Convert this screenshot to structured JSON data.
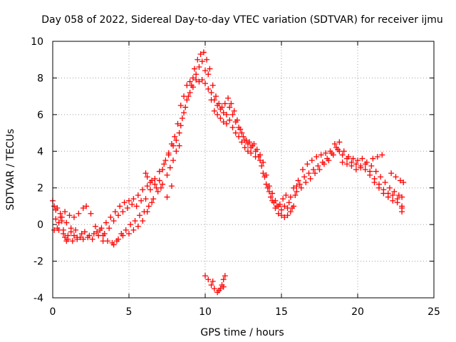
{
  "chart_data": {
    "type": "scatter",
    "title": "Day 058 of 2022, Sidereal Day-to-day VTEC variation (SDTVAR) for receiver ijmu",
    "xlabel": "GPS time / hours",
    "ylabel": "SDTVAR / TECUs",
    "xlim": [
      0,
      25
    ],
    "ylim": [
      -4,
      10
    ],
    "xticks": [
      0,
      5,
      10,
      15,
      20,
      25
    ],
    "yticks": [
      -4,
      -2,
      0,
      2,
      4,
      6,
      8,
      10
    ],
    "xtick_labels": [
      "0",
      "5",
      "10",
      "15",
      "20",
      "25"
    ],
    "ytick_labels": [
      "-4",
      "-2",
      "0",
      "2",
      "4",
      "6",
      "8",
      "10"
    ],
    "grid": true,
    "marker": "+",
    "series": [
      {
        "name": "SDTVAR",
        "color": "#ff0000",
        "points": [
          [
            0.0,
            1.3
          ],
          [
            0.1,
            1.0
          ],
          [
            0.2,
            0.3
          ],
          [
            0.3,
            -0.2
          ],
          [
            0.4,
            0.1
          ],
          [
            0.5,
            0.4
          ],
          [
            0.6,
            0.2
          ],
          [
            0.7,
            -0.3
          ],
          [
            0.8,
            -0.7
          ],
          [
            0.9,
            -0.9
          ],
          [
            1.0,
            -0.6
          ],
          [
            1.2,
            -0.4
          ],
          [
            1.4,
            -0.6
          ],
          [
            1.6,
            -0.8
          ],
          [
            1.8,
            -0.7
          ],
          [
            2.0,
            -0.8
          ],
          [
            2.3,
            -0.7
          ],
          [
            2.6,
            -0.8
          ],
          [
            3.0,
            -0.6
          ],
          [
            3.3,
            -0.6
          ],
          [
            3.6,
            -0.9
          ],
          [
            4.0,
            -1.1
          ],
          [
            4.3,
            -0.8
          ],
          [
            4.6,
            -0.6
          ],
          [
            5.0,
            -0.5
          ],
          [
            5.3,
            -0.3
          ],
          [
            5.6,
            -0.1
          ],
          [
            5.9,
            0.2
          ],
          [
            6.2,
            0.7
          ],
          [
            6.5,
            1.2
          ],
          [
            6.8,
            2.0
          ],
          [
            7.0,
            2.4
          ],
          [
            7.2,
            3.0
          ],
          [
            7.4,
            3.5
          ],
          [
            7.6,
            3.8
          ],
          [
            7.8,
            4.4
          ],
          [
            8.0,
            4.8
          ],
          [
            8.2,
            5.5
          ],
          [
            8.4,
            6.5
          ],
          [
            8.6,
            7.0
          ],
          [
            8.8,
            7.6
          ],
          [
            9.0,
            7.8
          ],
          [
            9.2,
            8.0
          ],
          [
            9.4,
            7.9
          ],
          [
            9.6,
            7.8
          ],
          [
            9.8,
            7.9
          ],
          [
            10.0,
            7.7
          ],
          [
            10.2,
            7.4
          ],
          [
            10.4,
            6.8
          ],
          [
            10.6,
            6.2
          ],
          [
            10.8,
            6.0
          ],
          [
            11.0,
            5.8
          ],
          [
            11.2,
            5.6
          ],
          [
            11.4,
            5.5
          ],
          [
            11.6,
            5.7
          ],
          [
            11.8,
            5.3
          ],
          [
            12.0,
            5.0
          ],
          [
            12.2,
            4.8
          ],
          [
            12.4,
            4.5
          ],
          [
            12.6,
            4.2
          ],
          [
            12.8,
            4.0
          ],
          [
            13.0,
            3.9
          ],
          [
            13.3,
            3.7
          ],
          [
            13.6,
            3.5
          ],
          [
            13.8,
            2.8
          ],
          [
            14.0,
            2.2
          ],
          [
            14.2,
            1.8
          ],
          [
            14.4,
            1.3
          ],
          [
            14.6,
            0.9
          ],
          [
            14.8,
            0.6
          ],
          [
            15.0,
            0.5
          ],
          [
            15.2,
            0.4
          ],
          [
            15.4,
            0.5
          ],
          [
            15.6,
            0.7
          ],
          [
            15.8,
            1.0
          ],
          [
            16.0,
            1.8
          ],
          [
            16.2,
            2.2
          ],
          [
            16.5,
            2.6
          ],
          [
            16.8,
            2.8
          ],
          [
            17.1,
            3.0
          ],
          [
            17.4,
            3.2
          ],
          [
            17.7,
            3.4
          ],
          [
            18.0,
            3.6
          ],
          [
            18.3,
            3.9
          ],
          [
            18.6,
            4.2
          ],
          [
            18.8,
            4.0
          ],
          [
            19.0,
            3.8
          ],
          [
            19.3,
            3.6
          ],
          [
            19.6,
            3.4
          ],
          [
            19.9,
            3.3
          ],
          [
            20.2,
            3.2
          ],
          [
            20.5,
            3.0
          ],
          [
            20.8,
            2.7
          ],
          [
            21.1,
            2.3
          ],
          [
            21.4,
            2.0
          ],
          [
            21.7,
            1.7
          ],
          [
            22.0,
            1.5
          ],
          [
            22.3,
            1.3
          ],
          [
            22.6,
            1.2
          ],
          [
            22.9,
            1.0
          ],
          [
            0.2,
            0.8
          ],
          [
            0.5,
            0.6
          ],
          [
            0.8,
            0.7
          ],
          [
            1.1,
            0.5
          ],
          [
            1.4,
            0.4
          ],
          [
            1.7,
            0.6
          ],
          [
            2.0,
            0.9
          ],
          [
            2.2,
            1.0
          ],
          [
            2.5,
            0.6
          ],
          [
            2.8,
            -0.1
          ],
          [
            3.1,
            -0.3
          ],
          [
            3.4,
            -0.5
          ],
          [
            3.7,
            -0.2
          ],
          [
            4.0,
            0.2
          ],
          [
            4.3,
            0.5
          ],
          [
            4.6,
            0.7
          ],
          [
            4.9,
            0.9
          ],
          [
            5.2,
            1.1
          ],
          [
            5.5,
            1.0
          ],
          [
            5.8,
            1.3
          ],
          [
            6.1,
            1.4
          ],
          [
            6.4,
            1.9
          ],
          [
            6.7,
            2.5
          ],
          [
            7.0,
            2.9
          ],
          [
            7.3,
            3.3
          ],
          [
            7.6,
            3.9
          ],
          [
            7.9,
            4.3
          ],
          [
            8.1,
            4.6
          ],
          [
            8.3,
            5.0
          ],
          [
            8.5,
            5.8
          ],
          [
            8.7,
            6.4
          ],
          [
            8.9,
            7.0
          ],
          [
            9.1,
            7.6
          ],
          [
            9.3,
            8.5
          ],
          [
            9.5,
            9.0
          ],
          [
            9.7,
            9.3
          ],
          [
            9.9,
            9.4
          ],
          [
            10.1,
            9.0
          ],
          [
            10.3,
            8.5
          ],
          [
            10.5,
            7.6
          ],
          [
            10.7,
            7.0
          ],
          [
            10.9,
            6.6
          ],
          [
            11.1,
            6.4
          ],
          [
            11.3,
            6.6
          ],
          [
            11.5,
            6.9
          ],
          [
            11.7,
            6.6
          ],
          [
            11.9,
            6.2
          ],
          [
            12.1,
            5.7
          ],
          [
            12.3,
            5.2
          ],
          [
            12.5,
            4.8
          ],
          [
            12.7,
            4.6
          ],
          [
            12.9,
            4.5
          ],
          [
            13.1,
            4.3
          ],
          [
            13.3,
            4.0
          ],
          [
            13.5,
            3.7
          ],
          [
            13.7,
            3.2
          ],
          [
            13.9,
            2.6
          ],
          [
            14.1,
            2.0
          ],
          [
            14.3,
            1.5
          ],
          [
            14.5,
            1.2
          ],
          [
            14.7,
            1.0
          ],
          [
            14.9,
            1.1
          ],
          [
            15.1,
            1.4
          ],
          [
            15.3,
            1.6
          ],
          [
            15.5,
            1.2
          ],
          [
            15.7,
            0.9
          ],
          [
            15.9,
            1.6
          ],
          [
            16.1,
            2.4
          ],
          [
            16.4,
            3.0
          ],
          [
            16.7,
            3.3
          ],
          [
            17.0,
            3.5
          ],
          [
            17.3,
            3.7
          ],
          [
            17.6,
            3.8
          ],
          [
            17.9,
            3.9
          ],
          [
            18.2,
            4.0
          ],
          [
            18.5,
            4.4
          ],
          [
            18.8,
            4.5
          ],
          [
            19.1,
            4.0
          ],
          [
            19.4,
            3.7
          ],
          [
            19.7,
            3.6
          ],
          [
            20.0,
            3.5
          ],
          [
            20.3,
            3.6
          ],
          [
            20.6,
            3.4
          ],
          [
            20.9,
            3.2
          ],
          [
            21.2,
            2.9
          ],
          [
            21.5,
            2.6
          ],
          [
            21.8,
            2.3
          ],
          [
            22.1,
            2.0
          ],
          [
            22.4,
            1.8
          ],
          [
            22.7,
            1.6
          ],
          [
            22.9,
            1.5
          ],
          [
            21.0,
            3.6
          ],
          [
            21.3,
            3.7
          ],
          [
            21.6,
            3.8
          ],
          [
            22.2,
            2.8
          ],
          [
            22.5,
            2.6
          ],
          [
            22.8,
            2.4
          ],
          [
            23.0,
            2.3
          ],
          [
            6.1,
            2.8
          ],
          [
            6.2,
            2.6
          ],
          [
            6.4,
            2.3
          ],
          [
            6.7,
            2.2
          ],
          [
            7.1,
            2.0
          ],
          [
            7.5,
            1.5
          ],
          [
            7.8,
            2.1
          ],
          [
            10.0,
            -2.8
          ],
          [
            10.2,
            -3.0
          ],
          [
            10.4,
            -3.3
          ],
          [
            10.6,
            -3.5
          ],
          [
            10.8,
            -3.7
          ],
          [
            11.0,
            -3.5
          ],
          [
            11.1,
            -3.3
          ],
          [
            11.2,
            -3.0
          ],
          [
            11.3,
            -2.8
          ],
          [
            10.5,
            -3.1
          ],
          [
            10.9,
            -3.6
          ],
          [
            11.2,
            -3.4
          ],
          [
            0.3,
            0.9
          ],
          [
            0.6,
            0.4
          ],
          [
            0.9,
            0.1
          ],
          [
            1.2,
            -0.2
          ],
          [
            1.5,
            -0.3
          ],
          [
            1.9,
            -0.5
          ],
          [
            2.4,
            -0.6
          ],
          [
            2.9,
            -0.4
          ],
          [
            3.2,
            -0.2
          ],
          [
            3.5,
            0.1
          ],
          [
            3.8,
            0.4
          ],
          [
            4.1,
            0.7
          ],
          [
            4.4,
            1.0
          ],
          [
            4.7,
            1.2
          ],
          [
            5.0,
            1.3
          ],
          [
            5.3,
            1.4
          ],
          [
            5.6,
            1.6
          ],
          [
            5.9,
            1.9
          ],
          [
            6.2,
            2.1
          ],
          [
            6.5,
            2.4
          ],
          [
            8.4,
            5.4
          ],
          [
            8.6,
            6.1
          ],
          [
            8.8,
            6.8
          ],
          [
            9.0,
            7.2
          ],
          [
            9.2,
            7.5
          ],
          [
            9.4,
            8.2
          ],
          [
            9.6,
            8.6
          ],
          [
            9.8,
            8.9
          ],
          [
            10.0,
            8.4
          ],
          [
            10.2,
            8.2
          ],
          [
            10.4,
            7.2
          ],
          [
            10.6,
            6.8
          ],
          [
            10.8,
            6.5
          ],
          [
            11.0,
            6.3
          ],
          [
            11.2,
            6.1
          ],
          [
            11.4,
            6.0
          ],
          [
            11.6,
            6.4
          ],
          [
            11.8,
            6.0
          ],
          [
            12.0,
            5.6
          ],
          [
            12.2,
            5.3
          ],
          [
            12.4,
            5.0
          ],
          [
            12.6,
            4.6
          ],
          [
            12.8,
            4.4
          ],
          [
            13.0,
            4.2
          ],
          [
            13.2,
            4.4
          ],
          [
            13.4,
            4.1
          ],
          [
            13.6,
            3.8
          ],
          [
            13.8,
            3.4
          ],
          [
            14.0,
            2.7
          ],
          [
            14.2,
            2.1
          ],
          [
            14.4,
            1.7
          ],
          [
            14.6,
            1.3
          ],
          [
            14.8,
            1.0
          ],
          [
            15.0,
            0.8
          ],
          [
            15.2,
            1.0
          ],
          [
            15.4,
            0.9
          ],
          [
            15.6,
            1.5
          ],
          [
            15.8,
            2.0
          ],
          [
            16.0,
            2.1
          ],
          [
            16.3,
            2.0
          ],
          [
            16.6,
            2.3
          ],
          [
            16.9,
            2.5
          ],
          [
            17.2,
            2.8
          ],
          [
            17.5,
            3.0
          ],
          [
            17.8,
            3.3
          ],
          [
            18.1,
            3.5
          ],
          [
            18.4,
            3.8
          ],
          [
            18.7,
            4.1
          ],
          [
            19.0,
            3.4
          ],
          [
            19.3,
            3.3
          ],
          [
            19.6,
            3.2
          ],
          [
            19.9,
            3.0
          ],
          [
            20.2,
            3.1
          ],
          [
            20.5,
            3.3
          ],
          [
            20.8,
            2.9
          ],
          [
            21.1,
            2.5
          ],
          [
            21.4,
            2.2
          ],
          [
            21.7,
            1.9
          ],
          [
            22.0,
            1.7
          ],
          [
            22.3,
            1.6
          ],
          [
            22.6,
            1.4
          ],
          [
            22.9,
            0.7
          ],
          [
            22.9,
            0.9
          ],
          [
            0.1,
            -0.3
          ],
          [
            0.4,
            -0.3
          ],
          [
            0.7,
            -0.5
          ],
          [
            1.0,
            -0.8
          ],
          [
            1.3,
            -0.9
          ],
          [
            1.6,
            -0.7
          ],
          [
            2.1,
            -0.4
          ],
          [
            2.7,
            -0.5
          ],
          [
            3.3,
            -0.9
          ],
          [
            3.9,
            -1.0
          ],
          [
            4.2,
            -0.9
          ],
          [
            4.5,
            -0.5
          ],
          [
            4.8,
            -0.3
          ],
          [
            5.1,
            0.0
          ],
          [
            5.4,
            0.2
          ],
          [
            5.7,
            0.5
          ],
          [
            6.0,
            0.7
          ],
          [
            6.3,
            1.0
          ],
          [
            6.6,
            1.4
          ],
          [
            6.9,
            1.8
          ],
          [
            7.2,
            2.2
          ],
          [
            7.5,
            2.7
          ],
          [
            7.7,
            3.1
          ],
          [
            7.9,
            3.5
          ],
          [
            8.1,
            4.0
          ],
          [
            8.3,
            4.3
          ]
        ]
      }
    ]
  }
}
